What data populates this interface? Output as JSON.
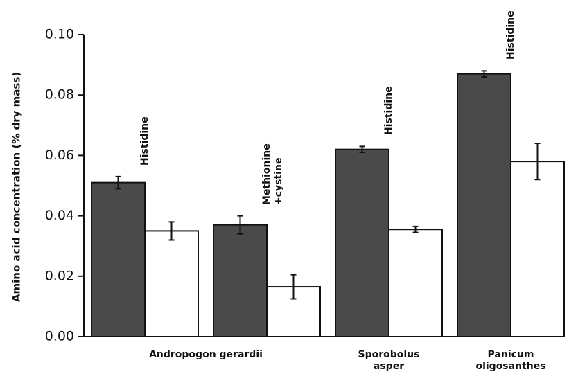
{
  "chart_data": {
    "type": "bar",
    "ylabel": "Amino acid concentration (% dry mass)",
    "categories": [
      "Andropogon gerardii",
      null,
      "Sporobolus asper",
      "Panicum oligosanthes"
    ],
    "annotations": [
      "Histidine",
      "Methionine +cystine",
      "Histidine",
      "Histidine"
    ],
    "series": [
      {
        "color": "#4a4a4a",
        "values": [
          0.051,
          0.037,
          0.062,
          0.087
        ],
        "errors": [
          0.002,
          0.003,
          0.001,
          0.001
        ]
      },
      {
        "color": "#ffffff",
        "values": [
          0.035,
          0.0165,
          0.0355,
          0.058
        ],
        "errors": [
          0.003,
          0.004,
          0.001,
          0.006
        ]
      }
    ],
    "ylim": [
      0,
      0.1
    ],
    "yticks": [
      {
        "value": 0,
        "label": "0.00"
      },
      {
        "value": 0.02,
        "label": "0.02"
      },
      {
        "value": 0.04,
        "label": "0.04"
      },
      {
        "value": 0.06,
        "label": "0.06"
      },
      {
        "value": 0.08,
        "label": "0.08"
      },
      {
        "value": 0.1,
        "label": "0.10"
      }
    ]
  }
}
